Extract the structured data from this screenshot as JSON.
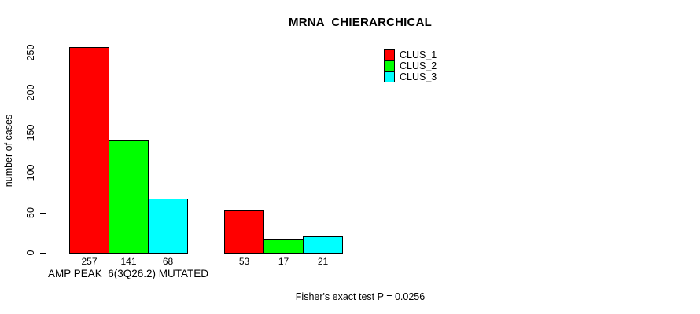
{
  "chart_data": {
    "type": "bar",
    "title": "MRNA_CHIERARCHICAL",
    "ylabel": "number of cases",
    "xlabel": "",
    "categories": [
      "AMP PEAK  6(3Q26.2) MUTATED",
      ""
    ],
    "series": [
      {
        "name": "CLUS_1",
        "color": "#ff0000",
        "values": [
          257,
          53
        ]
      },
      {
        "name": "CLUS_2",
        "color": "#00ff00",
        "values": [
          141,
          17
        ]
      },
      {
        "name": "CLUS_3",
        "color": "#00ffff",
        "values": [
          68,
          21
        ]
      }
    ],
    "yticks": [
      0,
      50,
      100,
      150,
      200,
      250
    ],
    "ylim": [
      0,
      260
    ],
    "grid": false,
    "legend_position": "top-right",
    "bar_border_color": "#000000",
    "background_color": "#ffffff",
    "annotations": [
      "Fisher's exact test P = 0.0256"
    ]
  }
}
